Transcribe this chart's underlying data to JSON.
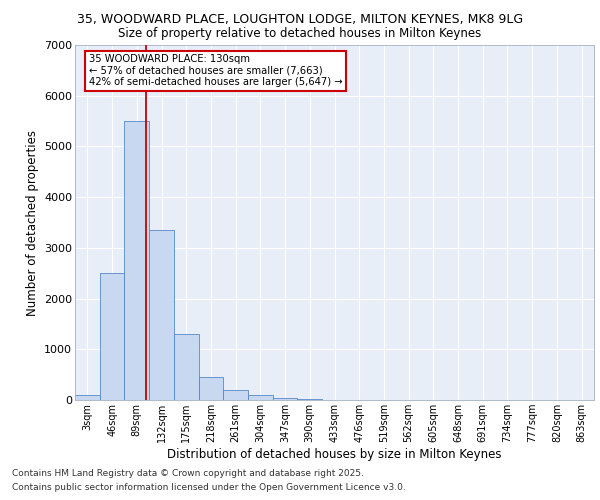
{
  "title_line1": "35, WOODWARD PLACE, LOUGHTON LODGE, MILTON KEYNES, MK8 9LG",
  "title_line2": "Size of property relative to detached houses in Milton Keynes",
  "xlabel": "Distribution of detached houses by size in Milton Keynes",
  "ylabel": "Number of detached properties",
  "bar_labels": [
    "3sqm",
    "46sqm",
    "89sqm",
    "132sqm",
    "175sqm",
    "218sqm",
    "261sqm",
    "304sqm",
    "347sqm",
    "390sqm",
    "433sqm",
    "476sqm",
    "519sqm",
    "562sqm",
    "605sqm",
    "648sqm",
    "691sqm",
    "734sqm",
    "777sqm",
    "820sqm",
    "863sqm"
  ],
  "bar_values": [
    100,
    2500,
    5500,
    3350,
    1300,
    450,
    200,
    90,
    40,
    10,
    5,
    3,
    2,
    1,
    0,
    0,
    0,
    0,
    0,
    0,
    0
  ],
  "bar_color": "#c8d8f0",
  "bar_edge_color": "#5588cc",
  "background_color": "#e8eef8",
  "grid_color": "#ffffff",
  "ylim": [
    0,
    7000
  ],
  "yticks": [
    0,
    1000,
    2000,
    3000,
    4000,
    5000,
    6000,
    7000
  ],
  "property_line_x": 2.87,
  "annotation_title": "35 WOODWARD PLACE: 130sqm",
  "annotation_line2": "← 57% of detached houses are smaller (7,663)",
  "annotation_line3": "42% of semi-detached houses are larger (5,647) →",
  "annotation_box_color": "#ffffff",
  "annotation_box_edge": "#cc0000",
  "property_line_color": "#cc0000",
  "footer_line1": "Contains HM Land Registry data © Crown copyright and database right 2025.",
  "footer_line2": "Contains public sector information licensed under the Open Government Licence v3.0."
}
